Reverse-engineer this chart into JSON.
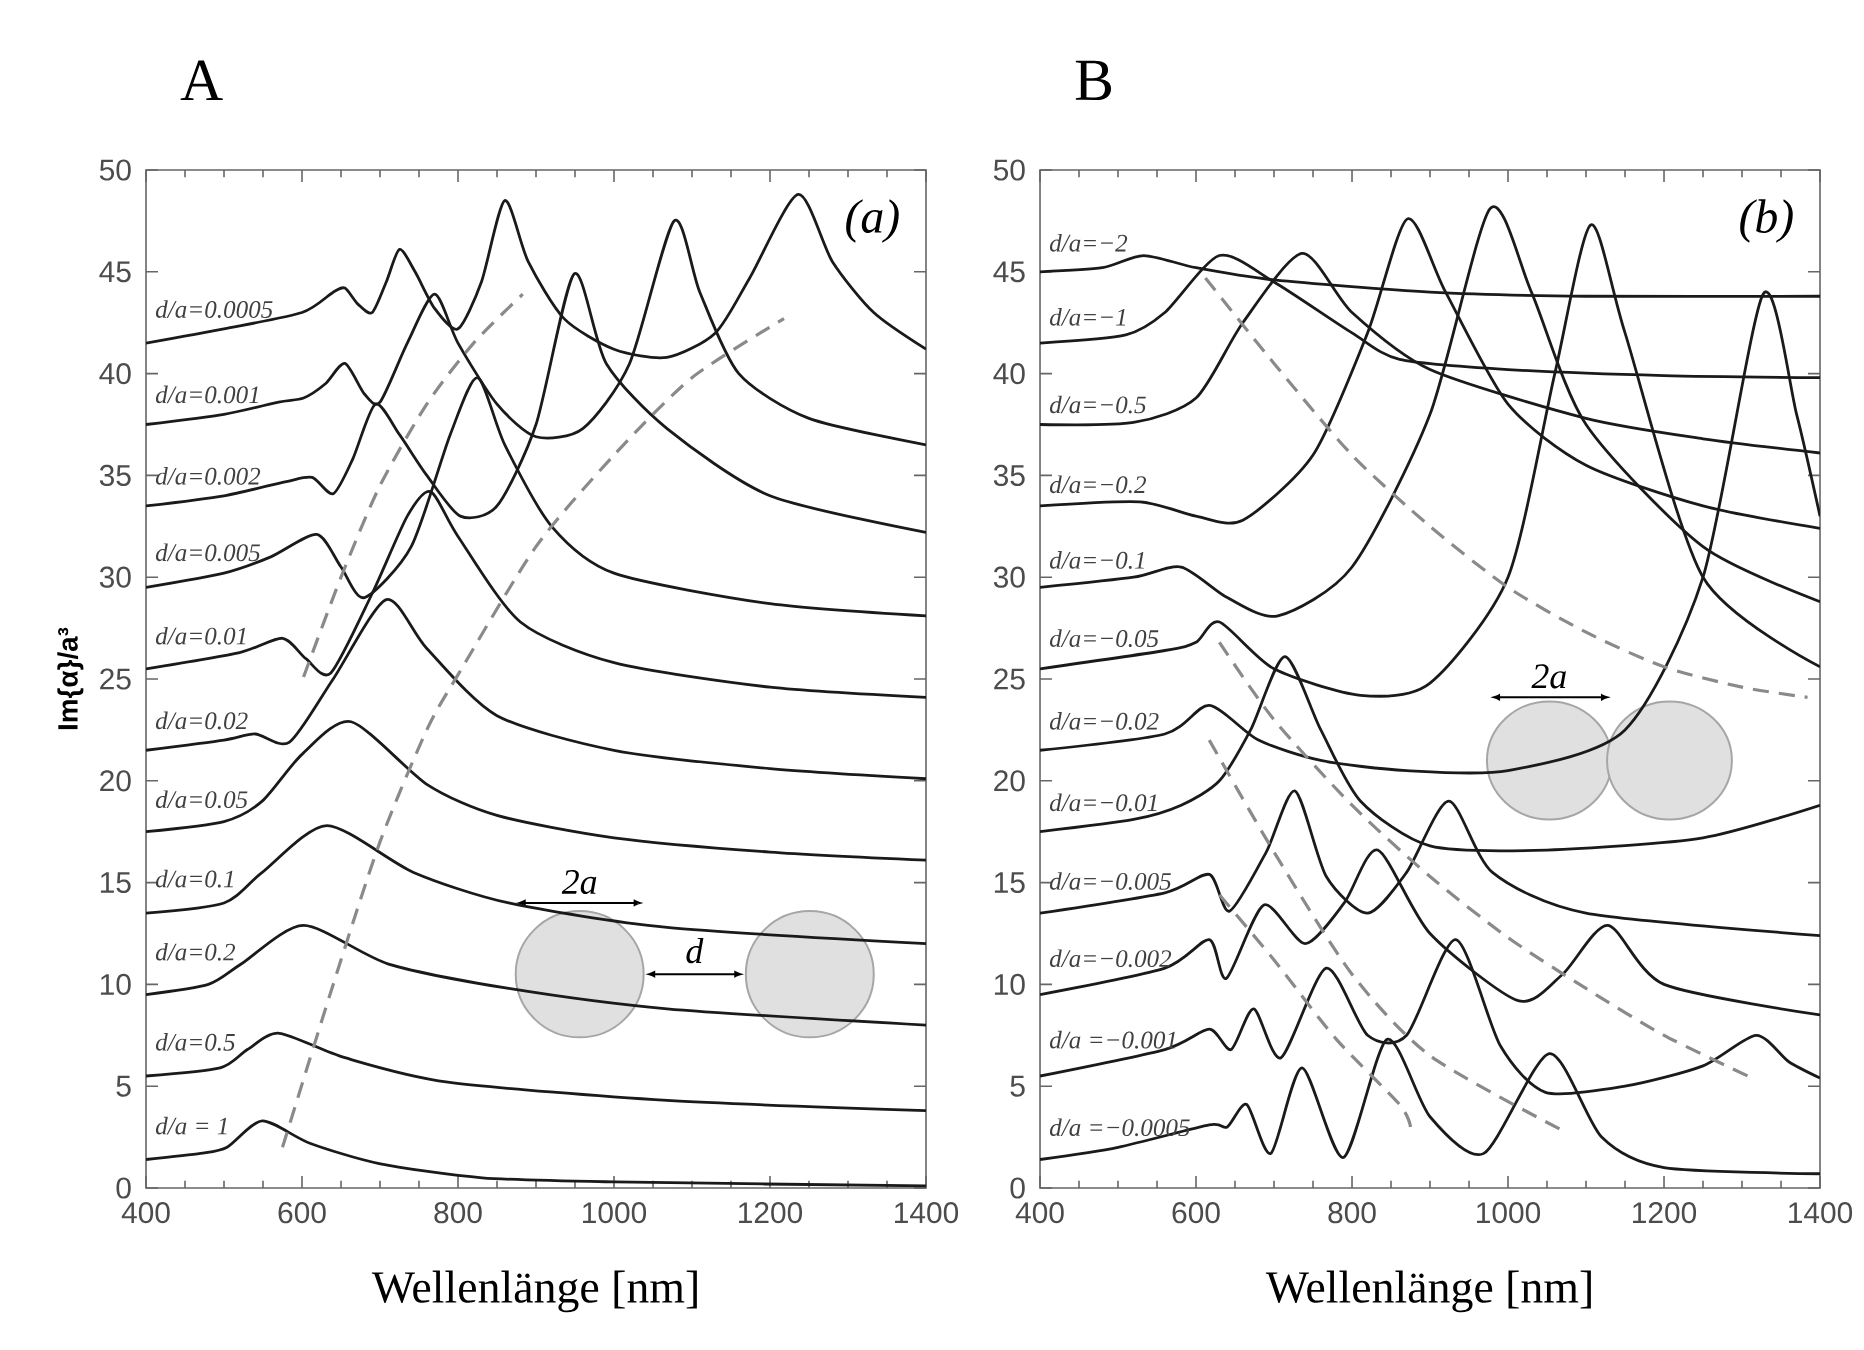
{
  "chart_data": [
    {
      "type": "line",
      "title": "A",
      "xlabel": "Wellenlänge [nm]",
      "ylabel": "Im{α}/a³",
      "xlim": [
        400,
        1400
      ],
      "ylim": [
        0,
        50
      ],
      "xticks": [
        400,
        600,
        800,
        1000,
        1200,
        1400
      ],
      "yticks": [
        0,
        5,
        10,
        15,
        20,
        25,
        30,
        35,
        40,
        45,
        50
      ],
      "annotations": [
        "(a)",
        "2a",
        "d"
      ],
      "series": [
        {
          "name": "d/a=0.0005",
          "color": "#1a1a1a",
          "x": [
            400,
            500,
            600,
            640,
            655,
            672,
            690,
            708,
            725,
            745,
            770,
            800,
            830,
            860,
            890,
            936,
            1000,
            1068,
            1130,
            1174,
            1236,
            1280,
            1333,
            1400
          ],
          "values": [
            41.5,
            42.2,
            43.0,
            44.0,
            44.2,
            43.4,
            43.0,
            44.5,
            46.1,
            45.0,
            43.2,
            42.2,
            44.5,
            48.5,
            45.5,
            42.7,
            41.2,
            40.8,
            42.0,
            44.7,
            48.8,
            45.5,
            43.0,
            41.2
          ]
        },
        {
          "name": "d/a=0.001",
          "color": "#1a1a1a",
          "x": [
            400,
            500,
            570,
            602,
            630,
            655,
            680,
            700,
            735,
            770,
            800,
            850,
            900,
            960,
            1020,
            1077,
            1110,
            1160,
            1250,
            1400
          ],
          "values": [
            37.5,
            38.0,
            38.6,
            38.8,
            39.5,
            40.5,
            39.0,
            38.6,
            41.5,
            43.9,
            41.5,
            38.5,
            36.9,
            37.3,
            40.5,
            47.5,
            44.0,
            40.0,
            37.8,
            36.5
          ]
        },
        {
          "name": "d/a=0.002",
          "color": "#1a1a1a",
          "x": [
            400,
            500,
            580,
            613,
            640,
            665,
            694,
            725,
            760,
            803,
            850,
            900,
            949,
            990,
            1068,
            1200,
            1400
          ],
          "values": [
            33.5,
            34.0,
            34.7,
            34.9,
            34.1,
            35.8,
            38.5,
            37.0,
            35.0,
            33.0,
            33.5,
            37.5,
            44.9,
            40.5,
            37.3,
            34.0,
            32.2
          ]
        },
        {
          "name": "d/a=0.005",
          "color": "#1a1a1a",
          "x": [
            400,
            500,
            560,
            619,
            650,
            680,
            740,
            790,
            825,
            860,
            920,
            1000,
            1200,
            1400
          ],
          "values": [
            29.5,
            30.2,
            31.0,
            32.1,
            30.5,
            29.0,
            31.5,
            37.0,
            39.8,
            36.5,
            32.5,
            30.2,
            28.7,
            28.1
          ]
        },
        {
          "name": "d/a=0.01",
          "color": "#1a1a1a",
          "x": [
            400,
            520,
            575,
            605,
            637,
            690,
            735,
            765,
            800,
            880,
            1000,
            1200,
            1400
          ],
          "values": [
            25.5,
            26.3,
            27.0,
            26.0,
            25.3,
            29.2,
            33.0,
            34.2,
            32.0,
            27.8,
            25.8,
            24.6,
            24.1
          ]
        },
        {
          "name": "d/a=0.02",
          "color": "#1a1a1a",
          "x": [
            400,
            500,
            540,
            584,
            640,
            708,
            760,
            850,
            1000,
            1200,
            1400
          ],
          "values": [
            21.5,
            22.0,
            22.3,
            21.9,
            25.0,
            28.9,
            26.5,
            23.2,
            21.5,
            20.6,
            20.1
          ]
        },
        {
          "name": "d/a=0.05",
          "color": "#1a1a1a",
          "x": [
            400,
            500,
            549,
            600,
            663,
            761,
            850,
            1000,
            1200,
            1400
          ],
          "values": [
            17.5,
            18.0,
            19.0,
            21.3,
            22.9,
            19.8,
            18.3,
            17.2,
            16.5,
            16.1
          ]
        },
        {
          "name": "d/a=0.1",
          "color": "#1a1a1a",
          "x": [
            400,
            500,
            549,
            632,
            743,
            865,
            1068,
            1400
          ],
          "values": [
            13.5,
            14.0,
            15.5,
            17.8,
            15.5,
            14.0,
            12.8,
            12.0
          ]
        },
        {
          "name": "d/a=0.2",
          "color": "#1a1a1a",
          "x": [
            400,
            480,
            522,
            602,
            711,
            865,
            1068,
            1400
          ],
          "values": [
            9.5,
            10.0,
            11.0,
            12.9,
            11.0,
            9.8,
            8.8,
            8.0
          ]
        },
        {
          "name": "d/a=0.5",
          "color": "#1a1a1a",
          "x": [
            400,
            495,
            530,
            571,
            655,
            787,
            1068,
            1400
          ],
          "values": [
            5.5,
            5.9,
            6.8,
            7.6,
            6.4,
            5.2,
            4.3,
            3.8
          ]
        },
        {
          "name": "d/a = 1",
          "color": "#1a1a1a",
          "x": [
            400,
            470,
            504,
            549,
            610,
            699,
            831,
            1000,
            1400
          ],
          "values": [
            1.4,
            1.7,
            2.0,
            3.3,
            2.2,
            1.2,
            0.5,
            0.3,
            0.1
          ]
        },
        {
          "color": "#8a8a8a",
          "line_style": "dashed",
          "x": [
            575,
            640,
            700,
            760,
            803,
            900,
            1000,
            1100,
            1218
          ],
          "values": [
            2.0,
            10.0,
            17.0,
            22.5,
            25.4,
            31.5,
            36.0,
            39.8,
            42.7
          ]
        },
        {
          "color": "#8a8a8a",
          "line_style": "dashed",
          "x": [
            602,
            650,
            700,
            760,
            820,
            883
          ],
          "values": [
            25.1,
            30.0,
            34.5,
            38.5,
            41.5,
            43.9
          ]
        }
      ]
    },
    {
      "type": "line",
      "title": "B",
      "xlabel": "Wellenlänge [nm]",
      "xlim": [
        400,
        1400
      ],
      "ylim": [
        0,
        50
      ],
      "xticks": [
        400,
        600,
        800,
        1000,
        1200,
        1400
      ],
      "yticks": [
        0,
        5,
        10,
        15,
        20,
        25,
        30,
        35,
        40,
        45,
        50
      ],
      "annotations": [
        "(b)",
        "2a"
      ],
      "series": [
        {
          "name": "d/a=−2",
          "color": "#1a1a1a",
          "x": [
            400,
            480,
            533,
            600,
            700,
            900,
            1100,
            1400
          ],
          "values": [
            45.0,
            45.2,
            45.8,
            45.2,
            44.6,
            44.0,
            43.8,
            43.8
          ]
        },
        {
          "name": "d/a=−1",
          "color": "#1a1a1a",
          "x": [
            400,
            510,
            560,
            630,
            700,
            800,
            861,
            1000,
            1200,
            1400
          ],
          "values": [
            41.5,
            41.9,
            43.0,
            45.8,
            44.5,
            42.0,
            40.7,
            40.2,
            39.9,
            39.8
          ]
        },
        {
          "name": "d/a=−0.5",
          "color": "#1a1a1a",
          "x": [
            400,
            520,
            600,
            660,
            736,
            800,
            900,
            1100,
            1250,
            1400
          ],
          "values": [
            37.5,
            37.6,
            38.8,
            42.5,
            45.9,
            43.0,
            40.2,
            37.8,
            36.8,
            36.1
          ]
        },
        {
          "name": "d/a=−0.2",
          "color": "#1a1a1a",
          "x": [
            400,
            528,
            600,
            660,
            750,
            820,
            871,
            920,
            1000,
            1100,
            1250,
            1400
          ],
          "values": [
            33.5,
            33.7,
            33.0,
            32.8,
            36.0,
            42.0,
            47.6,
            44.0,
            38.5,
            35.5,
            33.5,
            32.4
          ]
        },
        {
          "name": "d/a=−0.1",
          "color": "#1a1a1a",
          "x": [
            400,
            520,
            581,
            640,
            705,
            800,
            900,
            977,
            1030,
            1100,
            1250,
            1400
          ],
          "values": [
            29.5,
            30.0,
            30.5,
            29.0,
            28.1,
            30.5,
            38.0,
            48.1,
            44.0,
            37.5,
            31.5,
            28.8
          ]
        },
        {
          "name": "d/a=−0.05",
          "color": "#1a1a1a",
          "x": [
            400,
            560,
            600,
            630,
            700,
            811,
            900,
            1000,
            1060,
            1106,
            1150,
            1250,
            1400
          ],
          "values": [
            25.5,
            26.4,
            26.8,
            27.8,
            25.5,
            24.2,
            24.8,
            30.0,
            40.0,
            47.3,
            42.0,
            30.0,
            25.6
          ]
        },
        {
          "name": "d/a=−0.02",
          "color": "#1a1a1a",
          "x": [
            400,
            560,
            617,
            680,
            760,
            870,
            1000,
            1150,
            1250,
            1327,
            1370,
            1400
          ],
          "values": [
            21.5,
            22.3,
            23.7,
            22.0,
            21.0,
            20.5,
            20.5,
            22.5,
            30.0,
            43.9,
            38.0,
            33.0
          ]
        },
        {
          "name": "d/a=−0.01",
          "color": "#1a1a1a",
          "x": [
            400,
            520,
            581,
            630,
            670,
            714,
            760,
            811,
            900,
            1050,
            1250,
            1400
          ],
          "values": [
            17.5,
            18.1,
            18.8,
            20.0,
            22.5,
            26.1,
            22.5,
            19.0,
            16.8,
            16.6,
            17.2,
            18.8
          ]
        },
        {
          "name": "d/a=−0.005",
          "color": "#1a1a1a",
          "x": [
            400,
            560,
            617,
            643,
            690,
            727,
            767,
            820,
            870,
            924,
            980,
            1100,
            1400
          ],
          "values": [
            13.5,
            14.5,
            15.4,
            13.6,
            16.5,
            19.5,
            15.3,
            13.5,
            15.5,
            19.0,
            15.5,
            13.5,
            12.4
          ]
        },
        {
          "name": "d/a=−0.002",
          "color": "#1a1a1a",
          "x": [
            400,
            560,
            617,
            639,
            687,
            740,
            790,
            833,
            900,
            1013,
            1070,
            1128,
            1200,
            1400
          ],
          "values": [
            9.5,
            10.8,
            12.2,
            10.3,
            13.9,
            12.0,
            14.0,
            16.6,
            12.5,
            9.2,
            10.5,
            12.9,
            10.0,
            8.5
          ]
        },
        {
          "name": "d/a =−0.001",
          "color": "#1a1a1a",
          "x": [
            400,
            560,
            617,
            645,
            674,
            709,
            767,
            820,
            870,
            933,
            990,
            1048,
            1150,
            1250,
            1318,
            1360,
            1400
          ],
          "values": [
            5.5,
            6.8,
            7.8,
            6.8,
            8.8,
            6.4,
            10.8,
            7.5,
            7.5,
            12.2,
            7.0,
            4.7,
            5.0,
            6.0,
            7.5,
            6.2,
            5.4
          ]
        },
        {
          "name": "d/a =−0.0005",
          "color": "#1a1a1a",
          "x": [
            400,
            500,
            617,
            640,
            665,
            696,
            736,
            789,
            845,
            900,
            969,
            1053,
            1120,
            1200,
            1400
          ],
          "values": [
            1.4,
            2.0,
            3.1,
            3.0,
            4.1,
            1.7,
            5.9,
            1.5,
            7.3,
            3.5,
            1.7,
            6.6,
            2.5,
            1.0,
            0.7
          ]
        },
        {
          "color": "#8a8a8a",
          "line_style": "dashed",
          "x": [
            612,
            700,
            800,
            900,
            1000,
            1100,
            1200,
            1300,
            1384
          ],
          "values": [
            44.7,
            40.5,
            36.0,
            32.5,
            29.5,
            27.3,
            25.6,
            24.6,
            24.1
          ]
        },
        {
          "color": "#8a8a8a",
          "line_style": "dashed",
          "x": [
            630,
            700,
            800,
            900,
            1000,
            1100,
            1200,
            1313
          ],
          "values": [
            26.8,
            23.0,
            18.8,
            15.3,
            12.3,
            9.8,
            7.5,
            5.4
          ]
        },
        {
          "color": "#8a8a8a",
          "line_style": "dashed",
          "x": [
            617,
            700,
            800,
            900,
            1066
          ],
          "values": [
            22.0,
            16.5,
            10.5,
            6.5,
            2.9
          ]
        },
        {
          "color": "#8a8a8a",
          "line_style": "dashed",
          "x": [
            630,
            700,
            780,
            861,
            875
          ],
          "values": [
            14.4,
            11.2,
            7.3,
            4.1,
            3.0
          ]
        }
      ]
    }
  ]
}
